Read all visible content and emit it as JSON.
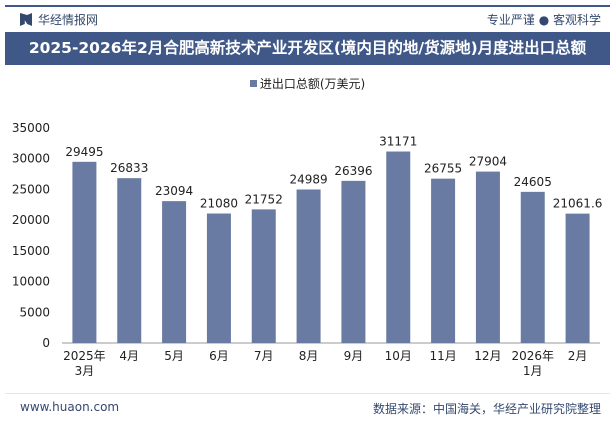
{
  "header": {
    "brand": "华经情报网",
    "slogan": "专业严谨 ● 客观科学",
    "title": "2025-2026年2月合肥高新技术产业开发区(境内目的地/货源地)月度进出口总额"
  },
  "footer": {
    "website": "www.huaon.com",
    "source": "数据来源：中国海关，华经产业研究院整理"
  },
  "colors": {
    "bar": "#6a7ba3",
    "header": "#3f5888"
  },
  "chart_data": {
    "type": "bar",
    "title": "2025-2026年2月合肥高新技术产业开发区(境内目的地/货源地)月度进出口总额",
    "categories": [
      "2025年\n3月",
      "4月",
      "5月",
      "6月",
      "7月",
      "8月",
      "9月",
      "10月",
      "11月",
      "12月",
      "2026年\n1月",
      "2月"
    ],
    "series": [
      {
        "name": "进出口总额(万美元)",
        "values": [
          29495,
          26833,
          23094,
          21080,
          21752,
          24989,
          26396,
          31171,
          26755,
          27904,
          24605,
          21061.6
        ]
      }
    ],
    "data_labels": [
      "29495",
      "26833",
      "23094",
      "21080",
      "21752",
      "24989",
      "26396",
      "31171",
      "26755",
      "27904",
      "24605",
      "21061.6"
    ],
    "ylim": [
      0,
      35000
    ],
    "yticks": [
      0,
      5000,
      10000,
      15000,
      20000,
      25000,
      30000,
      35000
    ],
    "legend": "top-center",
    "grid": false
  }
}
